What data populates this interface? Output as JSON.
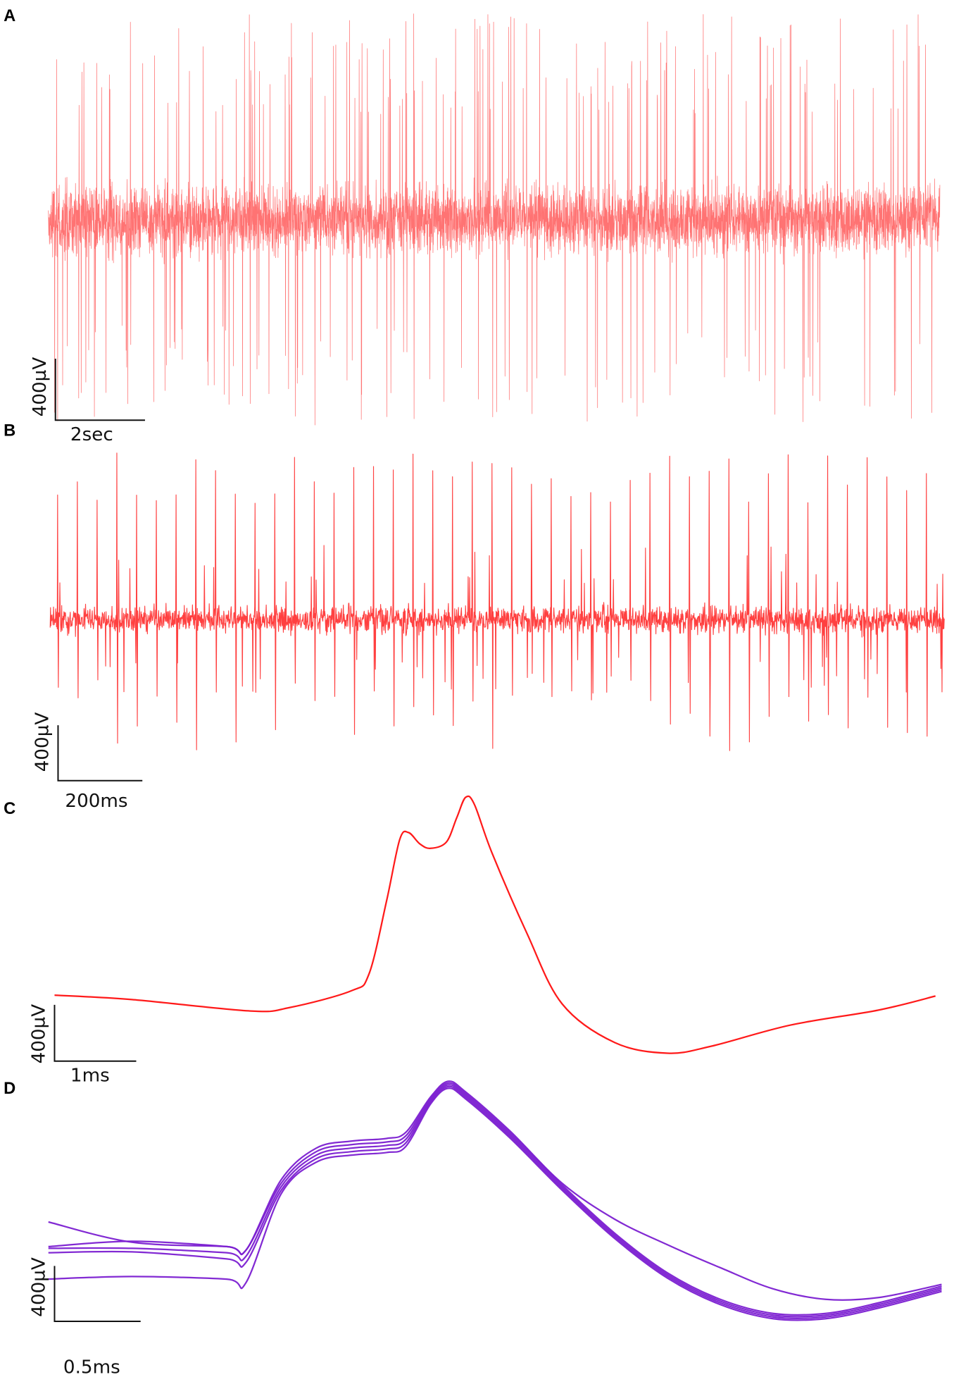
{
  "panels": [
    {
      "label": "A",
      "scale_y": "400µV",
      "scale_x": "2sec"
    },
    {
      "label": "B",
      "scale_y": "400µV",
      "scale_x": "200ms"
    },
    {
      "label": "C",
      "scale_y": "400µV",
      "scale_x": "1ms"
    },
    {
      "label": "D",
      "scale_y": "400µV",
      "scale_x": "0.5ms"
    }
  ]
}
